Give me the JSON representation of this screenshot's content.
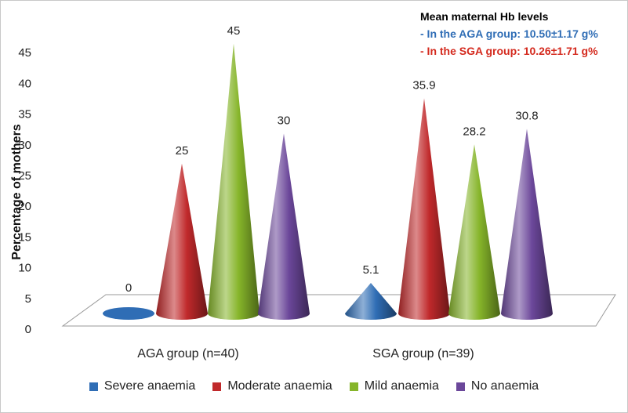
{
  "chart_data": {
    "type": "bar",
    "style": "3d-cone",
    "ylabel": "Percentage of mothers",
    "ylim": [
      0,
      45
    ],
    "yticks": [
      0,
      5,
      10,
      15,
      20,
      25,
      30,
      35,
      40,
      45
    ],
    "categories": [
      "AGA group (n=40)",
      "SGA group (n=39)"
    ],
    "series": [
      {
        "name": "Severe anaemia",
        "color": "#2f6db5",
        "values": [
          0,
          5.1
        ],
        "labels": [
          "0",
          "5.1"
        ]
      },
      {
        "name": "Moderate anaemia",
        "color": "#c0292b",
        "values": [
          25,
          35.9
        ],
        "labels": [
          "25",
          "35.9"
        ]
      },
      {
        "name": "Mild anaemia",
        "color": "#86b52a",
        "values": [
          45,
          28.2
        ],
        "labels": [
          "45",
          "28.2"
        ]
      },
      {
        "name": "No anaemia",
        "color": "#6b479a",
        "values": [
          30,
          30.8
        ],
        "labels": [
          "30",
          "30.8"
        ]
      }
    ],
    "annotations": {
      "title": "Mean maternal Hb levels",
      "lines": [
        {
          "text": "- In the AGA group: 10.50±1.17 g%",
          "color": "#2f6db5"
        },
        {
          "text": "- In the SGA group: 10.26±1.71 g%",
          "color": "#d42a1e"
        }
      ]
    },
    "legend_position": "bottom"
  }
}
